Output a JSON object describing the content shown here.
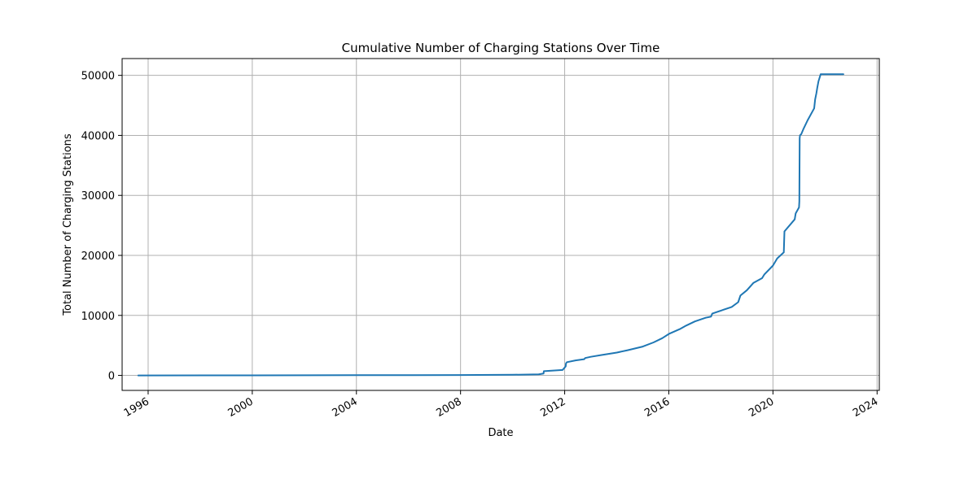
{
  "chart_data": {
    "type": "line",
    "title": "Cumulative Number of Charging Stations Over Time",
    "xlabel": "Date",
    "ylabel": "Total Number of Charging Stations",
    "x_is_date": true,
    "xlim": [
      "1995-01-01",
      "2024-02-01"
    ],
    "ylim": [
      -2500,
      52800
    ],
    "xticks": [
      {
        "value": "1996-01-01",
        "label": "1996"
      },
      {
        "value": "2000-01-01",
        "label": "2000"
      },
      {
        "value": "2004-01-01",
        "label": "2004"
      },
      {
        "value": "2008-01-01",
        "label": "2008"
      },
      {
        "value": "2012-01-01",
        "label": "2012"
      },
      {
        "value": "2016-01-01",
        "label": "2016"
      },
      {
        "value": "2020-01-01",
        "label": "2020"
      },
      {
        "value": "2024-01-01",
        "label": "2024"
      }
    ],
    "yticks": [
      0,
      10000,
      20000,
      30000,
      40000,
      50000
    ],
    "grid": true,
    "legend": "none",
    "line_color": "#1f77b4",
    "series": [
      {
        "x": [
          "1995-08-15",
          "2000-01-01",
          "2004-01-01",
          "2008-01-01",
          "2010-01-01",
          "2011-01-01",
          "2011-03-10",
          "2011-03-15",
          "2011-12-01",
          "2012-01-15",
          "2012-01-20",
          "2012-02-01",
          "2012-06-01",
          "2012-10-01",
          "2012-10-15",
          "2013-01-01",
          "2013-06-01",
          "2014-01-01",
          "2014-06-01",
          "2015-01-01",
          "2015-06-01",
          "2015-10-01",
          "2016-01-01",
          "2016-06-01",
          "2016-09-01",
          "2017-01-01",
          "2017-06-01",
          "2017-08-15",
          "2017-09-01",
          "2018-01-01",
          "2018-06-01",
          "2018-09-01",
          "2018-10-01",
          "2019-01-01",
          "2019-04-01",
          "2019-08-01",
          "2019-09-01",
          "2020-01-01",
          "2020-03-01",
          "2020-06-01",
          "2020-06-10",
          "2020-11-01",
          "2020-11-15",
          "2021-01-01",
          "2021-01-05",
          "2021-01-10",
          "2021-01-15",
          "2021-02-01",
          "2021-03-01",
          "2021-05-01",
          "2021-08-01",
          "2021-08-15",
          "2021-09-01",
          "2021-09-15",
          "2021-10-01",
          "2021-11-01",
          "2021-12-01",
          "2022-02-01",
          "2022-06-01",
          "2022-09-15"
        ],
        "y": [
          0,
          10,
          30,
          60,
          100,
          180,
          300,
          700,
          900,
          1500,
          2000,
          2200,
          2500,
          2700,
          2900,
          3100,
          3400,
          3800,
          4200,
          4800,
          5500,
          6200,
          6900,
          7700,
          8300,
          9000,
          9600,
          9800,
          10300,
          10800,
          11400,
          12200,
          13300,
          14200,
          15400,
          16200,
          16800,
          18300,
          19500,
          20500,
          24000,
          26000,
          27000,
          28000,
          29000,
          39500,
          40000,
          40200,
          41000,
          42500,
          44500,
          46000,
          47000,
          48000,
          49000,
          50200,
          50200,
          50200,
          50200,
          50200
        ]
      }
    ]
  }
}
